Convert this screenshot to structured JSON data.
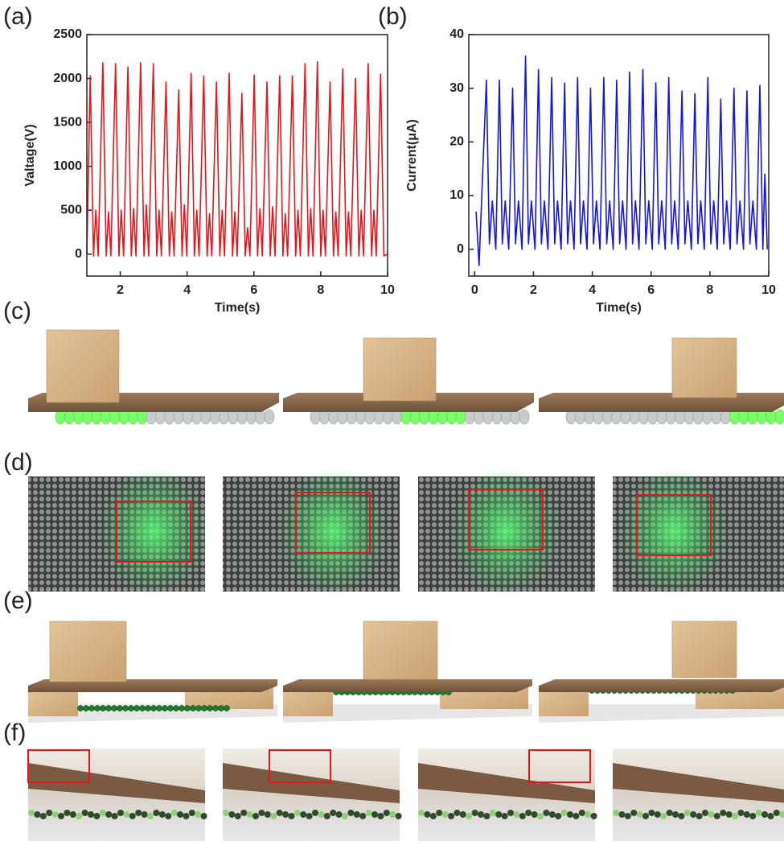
{
  "chart_data": [
    {
      "type": "line",
      "panel_label": "(a)",
      "x_label": "Time(s)",
      "y_label": "Valtage(V)",
      "x": [
        1.0,
        1.1,
        1.2,
        1.27,
        1.34,
        1.48,
        1.58,
        1.65,
        1.72,
        1.86,
        1.96,
        2.03,
        2.1,
        2.23,
        2.33,
        2.4,
        2.47,
        2.61,
        2.71,
        2.78,
        2.85,
        2.99,
        3.09,
        3.16,
        3.23,
        3.37,
        3.47,
        3.54,
        3.61,
        3.75,
        3.85,
        3.92,
        3.99,
        4.12,
        4.22,
        4.29,
        4.36,
        4.5,
        4.6,
        4.67,
        4.74,
        4.88,
        4.98,
        5.05,
        5.12,
        5.26,
        5.36,
        5.43,
        5.5,
        5.64,
        5.74,
        5.81,
        5.88,
        6.01,
        6.11,
        6.18,
        6.25,
        6.39,
        6.49,
        6.56,
        6.63,
        6.77,
        6.87,
        6.94,
        7.01,
        7.15,
        7.25,
        7.32,
        7.39,
        7.53,
        7.63,
        7.7,
        7.77,
        7.9,
        8.0,
        8.07,
        8.14,
        8.28,
        8.38,
        8.45,
        8.52,
        8.66,
        8.76,
        8.83,
        8.9,
        9.04,
        9.14,
        9.21,
        9.28,
        9.42,
        9.52,
        9.59,
        9.66,
        9.79,
        9.89,
        10.0
      ],
      "series": [
        {
          "color": "#e8141a",
          "values": [
            0,
            2030,
            -20,
            500,
            -20,
            2180,
            -20,
            480,
            -20,
            2170,
            -20,
            500,
            -20,
            2130,
            -20,
            520,
            -20,
            2180,
            -20,
            560,
            -20,
            2170,
            -20,
            500,
            -20,
            1960,
            -20,
            480,
            -20,
            1870,
            -20,
            560,
            -20,
            2060,
            -20,
            500,
            -20,
            2030,
            -20,
            460,
            -20,
            1960,
            -20,
            500,
            -20,
            2060,
            -20,
            480,
            -20,
            1830,
            -20,
            300,
            -20,
            2040,
            -20,
            520,
            -20,
            1960,
            -20,
            540,
            -20,
            2030,
            -20,
            460,
            -20,
            2030,
            -20,
            500,
            -20,
            2170,
            -20,
            520,
            -20,
            2190,
            -20,
            500,
            -20,
            1960,
            -20,
            480,
            -20,
            2110,
            -20,
            480,
            -20,
            2000,
            -20,
            500,
            -20,
            2170,
            -20,
            500,
            -20,
            2050,
            -20,
            0
          ]
        }
      ],
      "xlim": [
        1,
        10
      ],
      "xticks": [
        2,
        4,
        6,
        8,
        10
      ],
      "ylim": [
        -250,
        2500
      ],
      "yticks": [
        0,
        500,
        1000,
        1500,
        2000,
        2500
      ]
    },
    {
      "type": "line",
      "panel_label": "(b)",
      "x_label": "Time(s)",
      "y_label": "Current(μA)",
      "x": [
        0.05,
        0.15,
        0.27,
        0.4,
        0.5,
        0.6,
        0.72,
        0.84,
        0.94,
        1.04,
        1.16,
        1.29,
        1.39,
        1.49,
        1.61,
        1.73,
        1.83,
        1.93,
        2.05,
        2.17,
        2.27,
        2.37,
        2.49,
        2.62,
        2.72,
        2.82,
        2.94,
        3.06,
        3.16,
        3.26,
        3.38,
        3.5,
        3.6,
        3.7,
        3.82,
        3.94,
        4.04,
        4.14,
        4.26,
        4.39,
        4.49,
        4.59,
        4.71,
        4.83,
        4.93,
        5.03,
        5.15,
        5.27,
        5.37,
        5.47,
        5.59,
        5.72,
        5.82,
        5.92,
        6.04,
        6.16,
        6.26,
        6.36,
        6.48,
        6.6,
        6.7,
        6.8,
        6.92,
        7.05,
        7.15,
        7.25,
        7.37,
        7.49,
        7.59,
        7.69,
        7.81,
        7.93,
        8.03,
        8.13,
        8.25,
        8.37,
        8.47,
        8.57,
        8.69,
        8.82,
        8.92,
        9.02,
        9.14,
        9.26,
        9.36,
        9.46,
        9.58,
        9.7,
        9.8,
        9.87,
        9.95
      ],
      "series": [
        {
          "color": "#1414e6",
          "values": [
            7,
            -3,
            14,
            31.5,
            1,
            9,
            0,
            31.5,
            1,
            9,
            0,
            30,
            1,
            9,
            0,
            36,
            1,
            9,
            0,
            33.5,
            1,
            9,
            0,
            32,
            1,
            9,
            0,
            31,
            1,
            9,
            0,
            32,
            1,
            9,
            0,
            30,
            1,
            9,
            0,
            32,
            1,
            9,
            0,
            31.5,
            1,
            9,
            0,
            33,
            1,
            9,
            0,
            33.5,
            1,
            9,
            0,
            31,
            1,
            9,
            0,
            32,
            1,
            9,
            0,
            29.5,
            1,
            9,
            0,
            29,
            1,
            9,
            0,
            32,
            1,
            9,
            0,
            28,
            1,
            9,
            0,
            30,
            1,
            9,
            0,
            29.5,
            1,
            9,
            0,
            30.5,
            0,
            14,
            0
          ]
        }
      ],
      "xlim": [
        -0.2,
        10
      ],
      "xticks": [
        0,
        2,
        4,
        6,
        8,
        10
      ],
      "ylim": [
        -5,
        40
      ],
      "yticks": [
        0,
        10,
        20,
        30,
        40
      ]
    }
  ],
  "panel_labels": [
    "(c)",
    "(d)",
    "(e)",
    "(f)"
  ]
}
